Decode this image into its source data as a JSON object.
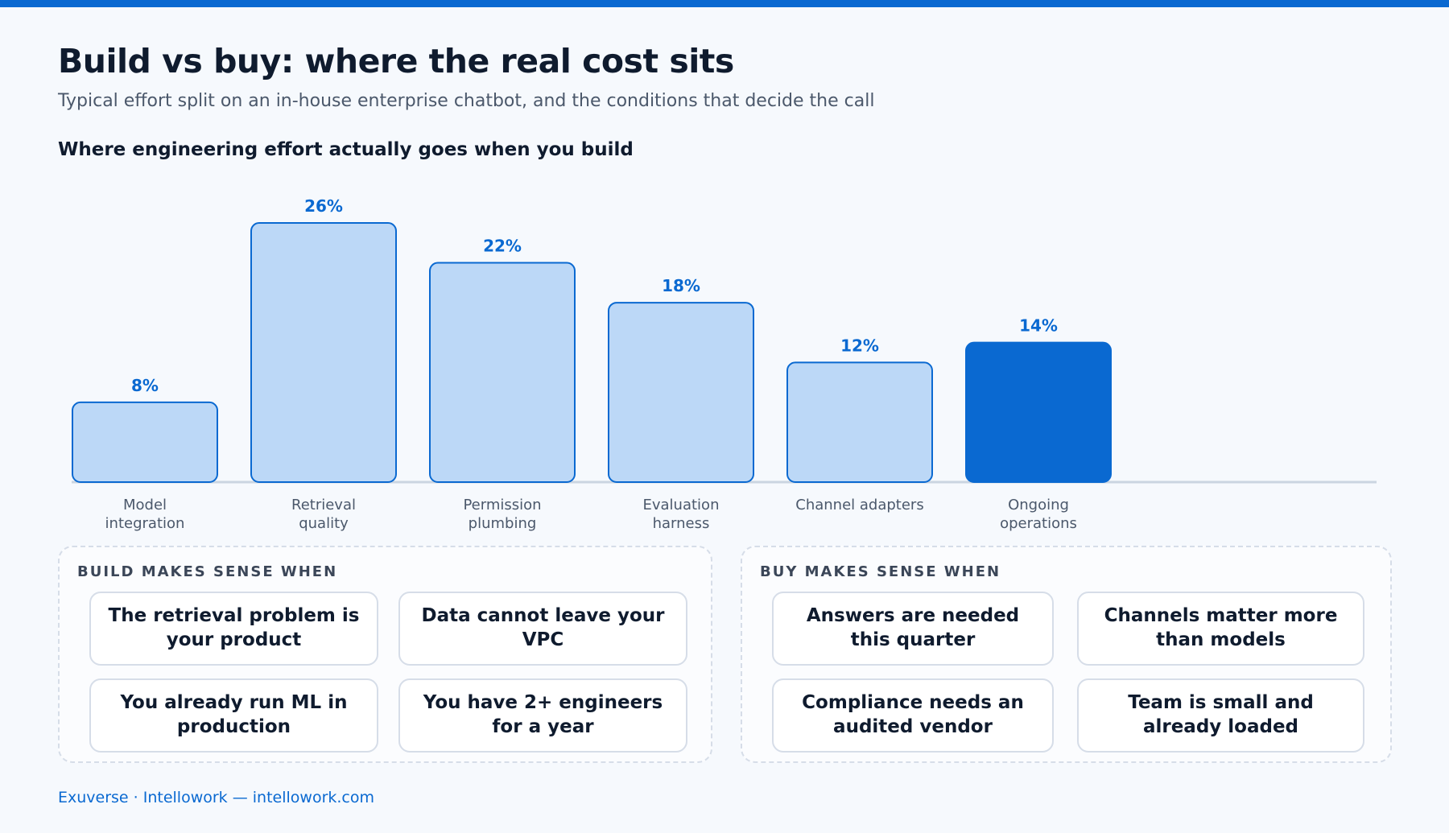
{
  "header": {
    "title": "Build vs buy: where the real cost sits",
    "subtitle": "Typical effort split on an in-house enterprise chatbot, and the conditions that decide the call"
  },
  "chart_data": {
    "type": "bar",
    "title": "Where engineering effort actually goes when you build",
    "categories": [
      [
        "Model",
        "integration"
      ],
      [
        "Retrieval",
        "quality"
      ],
      [
        "Permission",
        "plumbing"
      ],
      [
        "Evaluation",
        "harness"
      ],
      [
        "Channel adapters"
      ],
      [
        "Ongoing",
        "operations"
      ]
    ],
    "values": [
      8,
      26,
      22,
      18,
      12,
      14
    ],
    "value_labels": [
      "8%",
      "26%",
      "22%",
      "18%",
      "12%",
      "14%"
    ],
    "highlight_index": 5,
    "unit": "%",
    "ylim": [
      0,
      26
    ],
    "grid": false,
    "colors": {
      "bar": "#bcd8f7",
      "bar_stroke": "#0a69d1",
      "highlight": "#0a69d1"
    }
  },
  "build_panel": {
    "title": "BUILD MAKES SENSE WHEN",
    "cards": [
      "The retrieval problem is your product",
      "Data cannot leave your VPC",
      "You already run ML in production",
      "You have 2+ engineers for a year"
    ]
  },
  "buy_panel": {
    "title": "BUY MAKES SENSE WHEN",
    "cards": [
      "Answers are needed this quarter",
      "Channels matter more than models",
      "Compliance needs an audited vendor",
      "Team is small and already loaded"
    ]
  },
  "footer": {
    "text": "Exuverse · Intellowork — intellowork.com"
  }
}
